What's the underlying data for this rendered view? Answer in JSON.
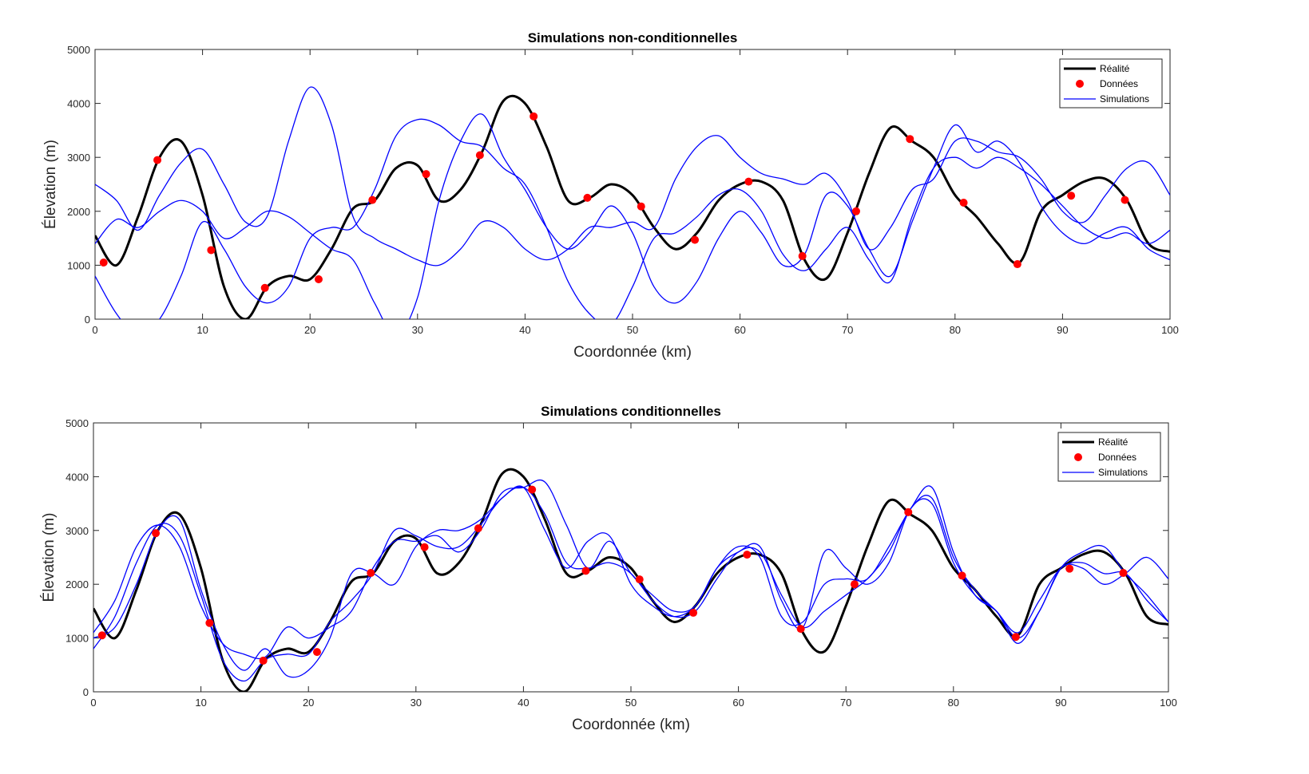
{
  "chart_data": [
    {
      "type": "line",
      "title": "Simulations non-conditionnelles",
      "xlabel": "Coordonnée (km)",
      "ylabel": "Élevation (m)",
      "x": [
        0,
        2,
        4,
        6,
        8,
        10,
        12,
        14,
        16,
        18,
        20,
        22,
        24,
        26,
        28,
        30,
        32,
        34,
        36,
        38,
        40,
        42,
        44,
        46,
        48,
        50,
        52,
        54,
        56,
        58,
        60,
        62,
        64,
        66,
        68,
        70,
        72,
        74,
        76,
        78,
        80,
        82,
        84,
        86,
        88,
        90,
        92,
        94,
        96,
        98,
        100
      ],
      "xlim": [
        0,
        100
      ],
      "ylim": [
        0,
        5000
      ],
      "xticks": [
        0,
        10,
        20,
        30,
        40,
        50,
        60,
        70,
        80,
        90,
        100
      ],
      "yticks": [
        0,
        1000,
        2000,
        3000,
        4000,
        5000
      ],
      "legend": "upper right",
      "series": [
        {
          "name": "Réalité",
          "color": "#000000",
          "linewidth": 3,
          "values": [
            1550,
            1000,
            1900,
            3000,
            3300,
            2300,
            600,
            0,
            600,
            800,
            740,
            1300,
            2050,
            2200,
            2800,
            2850,
            2200,
            2400,
            3100,
            4050,
            4000,
            3200,
            2200,
            2250,
            2500,
            2300,
            1700,
            1300,
            1600,
            2200,
            2500,
            2550,
            2200,
            1100,
            750,
            1600,
            2700,
            3550,
            3300,
            3000,
            2300,
            1900,
            1400,
            1050,
            2000,
            2300,
            2550,
            2600,
            2200,
            1400,
            1250
          ]
        },
        {
          "name": "Données",
          "color": "#ff0000",
          "marker": "dot",
          "x": [
            0.8,
            5.8,
            10.8,
            15.8,
            20.8,
            25.8,
            30.8,
            35.8,
            40.8,
            45.8,
            50.8,
            55.8,
            60.8,
            65.8,
            70.8,
            75.8,
            80.8,
            85.8,
            90.8,
            95.8
          ],
          "values": [
            1050,
            2950,
            1280,
            580,
            740,
            2210,
            2690,
            3040,
            3760,
            2250,
            2090,
            1470,
            2550,
            1170,
            2000,
            3340,
            2160,
            1020,
            2290,
            2210
          ]
        },
        {
          "name": "Simulations",
          "color": "#0000ff",
          "linewidth": 1.3,
          "values": [
            [
              2500,
              2200,
              1650,
              2300,
              2900,
              3150,
              2500,
              1800,
              1900,
              3300,
              4300,
              3600,
              1900,
              1500,
              1300,
              1100,
              1000,
              1300,
              1800,
              1700,
              1300,
              1100,
              1300,
              1700,
              1700,
              1800,
              1700,
              2600,
              3200,
              3400,
              3000,
              2700,
              2600,
              2500,
              2700,
              2200,
              1300,
              1700,
              2400,
              2600,
              3300,
              3300,
              3100,
              3000,
              2600,
              2000,
              1800,
              2300,
              2800,
              2900,
              2300
            ],
            [
              1400,
              1850,
              1700,
              2000,
              2200,
              2000,
              1500,
              1700,
              2000,
              1900,
              1600,
              1300,
              1100,
              300,
              -300,
              400,
              2200,
              3300,
              3800,
              3000,
              2400,
              1700,
              1300,
              1600,
              2100,
              1600,
              600,
              300,
              700,
              1500,
              2000,
              1600,
              1000,
              1200,
              2300,
              2100,
              1300,
              800,
              1800,
              2800,
              3600,
              3100,
              3300,
              2900,
              2100,
              1600,
              1400,
              1600,
              1700,
              1300,
              1100
            ],
            [
              800,
              100,
              -300,
              0,
              800,
              1800,
              1300,
              600,
              300,
              600,
              1500,
              1700,
              1700,
              2400,
              3400,
              3700,
              3600,
              3300,
              3200,
              2800,
              2500,
              1700,
              700,
              100,
              -100,
              600,
              1500,
              1600,
              1900,
              2300,
              2400,
              2000,
              1200,
              900,
              1300,
              1700,
              1100,
              700,
              1900,
              2800,
              3000,
              2800,
              3000,
              2800,
              2500,
              2100,
              1700,
              1500,
              1600,
              1400,
              1650
            ]
          ]
        }
      ]
    },
    {
      "type": "line",
      "title": "Simulations conditionnelles",
      "xlabel": "Coordonnée (km)",
      "ylabel": "Élevation (m)",
      "x": [
        0,
        2,
        4,
        6,
        8,
        10,
        12,
        14,
        16,
        18,
        20,
        22,
        24,
        26,
        28,
        30,
        32,
        34,
        36,
        38,
        40,
        42,
        44,
        46,
        48,
        50,
        52,
        54,
        56,
        58,
        60,
        62,
        64,
        66,
        68,
        70,
        72,
        74,
        76,
        78,
        80,
        82,
        84,
        86,
        88,
        90,
        92,
        94,
        96,
        98,
        100
      ],
      "xlim": [
        0,
        100
      ],
      "ylim": [
        0,
        5000
      ],
      "xticks": [
        0,
        10,
        20,
        30,
        40,
        50,
        60,
        70,
        80,
        90,
        100
      ],
      "yticks": [
        0,
        1000,
        2000,
        3000,
        4000,
        5000
      ],
      "legend": "upper right",
      "series": [
        {
          "name": "Réalité",
          "color": "#000000",
          "linewidth": 3,
          "values": [
            1550,
            1000,
            1900,
            3000,
            3300,
            2300,
            600,
            0,
            600,
            800,
            740,
            1300,
            2050,
            2200,
            2800,
            2850,
            2200,
            2400,
            3100,
            4050,
            4000,
            3200,
            2200,
            2250,
            2500,
            2300,
            1700,
            1300,
            1600,
            2200,
            2500,
            2550,
            2200,
            1100,
            750,
            1600,
            2700,
            3550,
            3300,
            3000,
            2300,
            1900,
            1400,
            1050,
            2000,
            2300,
            2550,
            2600,
            2200,
            1400,
            1250
          ]
        },
        {
          "name": "Données",
          "color": "#ff0000",
          "marker": "dot",
          "x": [
            0.8,
            5.8,
            10.8,
            15.8,
            20.8,
            25.8,
            30.8,
            35.8,
            40.8,
            45.8,
            50.8,
            55.8,
            60.8,
            65.8,
            70.8,
            75.8,
            80.8,
            85.8,
            90.8,
            95.8
          ],
          "values": [
            1050,
            2950,
            1280,
            580,
            740,
            2210,
            2690,
            3040,
            3760,
            2250,
            2090,
            1470,
            2550,
            1170,
            2000,
            3340,
            2160,
            1020,
            2290,
            2210
          ]
        },
        {
          "name": "Simulations",
          "color": "#0000ff",
          "linewidth": 1.3,
          "values": [
            [
              800,
              1400,
              2400,
              3100,
              2900,
              1800,
              600,
              200,
              600,
              700,
              700,
              1300,
              1700,
              2200,
              3000,
              2900,
              2700,
              2700,
              3100,
              3600,
              3800,
              3300,
              2400,
              2300,
              2400,
              2200,
              1700,
              1400,
              1500,
              2100,
              2600,
              2600,
              1800,
              1200,
              1500,
              1800,
              2100,
              2600,
              3400,
              3600,
              2500,
              1900,
              1500,
              1100,
              1700,
              2300,
              2400,
              2200,
              2200,
              1700,
              1300
            ],
            [
              1100,
              1700,
              2700,
              3100,
              2700,
              1600,
              900,
              700,
              650,
              1200,
              1000,
              1200,
              1500,
              2300,
              2800,
              2800,
              2900,
              2600,
              3000,
              3700,
              3800,
              3900,
              3100,
              2300,
              2800,
              2200,
              1800,
              1500,
              1600,
              2300,
              2700,
              2500,
              1400,
              1300,
              2000,
              2100,
              2100,
              2700,
              3400,
              3800,
              2600,
              1800,
              1500,
              1000,
              1500,
              2300,
              2300,
              2000,
              2200,
              2500,
              2100
            ],
            [
              1000,
              1200,
              2000,
              3000,
              3200,
              1900,
              900,
              400,
              800,
              300,
              400,
              1000,
              2200,
              2200,
              2000,
              2700,
              3000,
              3000,
              3200,
              3600,
              3800,
              3000,
              2300,
              2800,
              2900,
              2000,
              1600,
              1400,
              1600,
              2300,
              2600,
              2700,
              1700,
              1200,
              2600,
              2300,
              2000,
              2400,
              3400,
              3500,
              2400,
              1800,
              1500,
              900,
              1500,
              2300,
              2600,
              2700,
              2200,
              1800,
              1300
            ]
          ]
        }
      ]
    }
  ]
}
